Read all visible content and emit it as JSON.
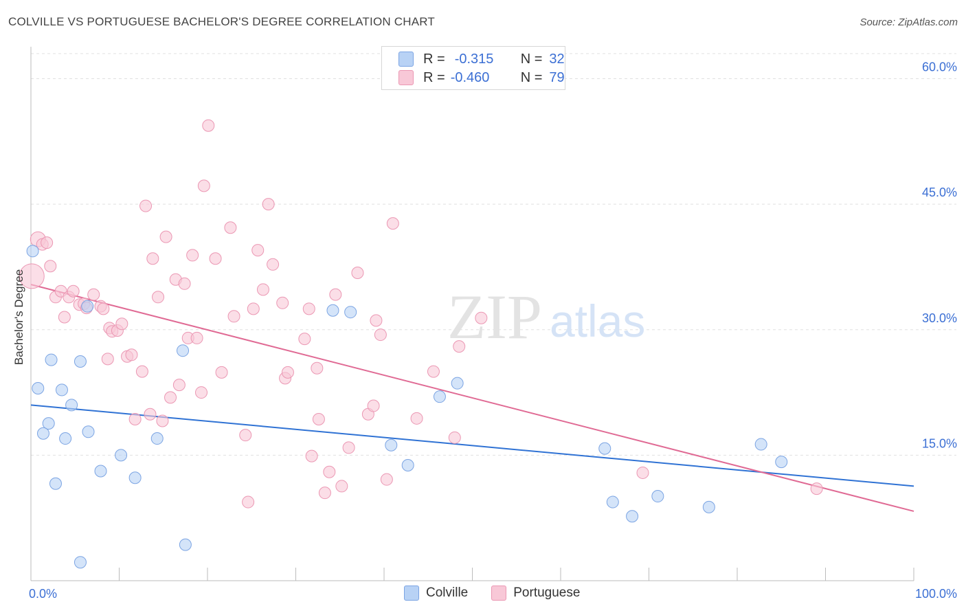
{
  "header": {
    "title": "COLVILLE VS PORTUGUESE BACHELOR'S DEGREE CORRELATION CHART",
    "source": "Source: ZipAtlas.com"
  },
  "legend": {
    "r_label": "R =",
    "n_label": "N =",
    "colville": {
      "r": "-0.315",
      "n": "32"
    },
    "portuguese": {
      "r": "-0.460",
      "n": "79"
    }
  },
  "colors": {
    "colville_fill": "#b8d2f5",
    "colville_stroke": "#7ba4e3",
    "colville_line": "#2f72d4",
    "portuguese_fill": "#f8c8d7",
    "portuguese_stroke": "#eb97b3",
    "portuguese_line": "#e06a94",
    "axis_text": "#3b6fd4"
  },
  "chart_data": {
    "type": "scatter",
    "title": "COLVILLE VS PORTUGUESE BACHELOR'S DEGREE CORRELATION CHART",
    "xlabel": "",
    "ylabel": "Bachelor's Degree",
    "xlim": [
      0,
      100
    ],
    "ylim": [
      0,
      63
    ],
    "x_tick_labels": [
      "0.0%",
      "100.0%"
    ],
    "y_ticks": [
      15,
      30,
      45,
      60
    ],
    "y_tick_labels": [
      "15.0%",
      "30.0%",
      "45.0%",
      "60.0%"
    ],
    "grid": true,
    "legend_position": "top-center",
    "watermark": "ZIPatlas",
    "series": [
      {
        "name": "Colville",
        "r": -0.315,
        "n": 32,
        "trend": [
          [
            0,
            21.0
          ],
          [
            100,
            11.3
          ]
        ],
        "points": [
          [
            0.2,
            39.4
          ],
          [
            0.8,
            23.0
          ],
          [
            2.0,
            18.8
          ],
          [
            1.4,
            17.6
          ],
          [
            2.3,
            26.4
          ],
          [
            3.5,
            22.8
          ],
          [
            2.8,
            11.6
          ],
          [
            3.9,
            17.0
          ],
          [
            4.6,
            21.0
          ],
          [
            5.6,
            26.2
          ],
          [
            6.5,
            17.8
          ],
          [
            6.4,
            32.8
          ],
          [
            7.9,
            13.1
          ],
          [
            10.2,
            15.0
          ],
          [
            11.8,
            12.3
          ],
          [
            14.3,
            17.0
          ],
          [
            17.2,
            27.5
          ],
          [
            17.5,
            4.3
          ],
          [
            5.6,
            2.2
          ],
          [
            34.2,
            32.3
          ],
          [
            36.2,
            32.1
          ],
          [
            40.8,
            16.2
          ],
          [
            42.7,
            13.8
          ],
          [
            46.3,
            22.0
          ],
          [
            48.3,
            23.6
          ],
          [
            65.0,
            15.8
          ],
          [
            65.9,
            9.4
          ],
          [
            68.1,
            7.7
          ],
          [
            71.0,
            10.1
          ],
          [
            76.8,
            8.8
          ],
          [
            82.7,
            16.3
          ],
          [
            85.0,
            14.2
          ]
        ]
      },
      {
        "name": "Portuguese",
        "r": -0.46,
        "n": 79,
        "trend": [
          [
            0,
            35.4
          ],
          [
            100,
            8.3
          ]
        ],
        "points": [
          [
            0.1,
            36.4
          ],
          [
            0.8,
            40.8
          ],
          [
            1.3,
            40.2
          ],
          [
            1.8,
            40.4
          ],
          [
            2.2,
            37.6
          ],
          [
            2.8,
            33.9
          ],
          [
            3.4,
            34.6
          ],
          [
            3.8,
            31.5
          ],
          [
            4.3,
            33.9
          ],
          [
            4.8,
            34.6
          ],
          [
            5.5,
            33.0
          ],
          [
            6.0,
            33.1
          ],
          [
            6.3,
            32.6
          ],
          [
            7.1,
            34.2
          ],
          [
            7.9,
            32.8
          ],
          [
            8.2,
            32.5
          ],
          [
            8.7,
            26.5
          ],
          [
            8.9,
            30.2
          ],
          [
            9.2,
            29.8
          ],
          [
            9.8,
            29.9
          ],
          [
            10.3,
            30.7
          ],
          [
            10.9,
            26.8
          ],
          [
            11.4,
            27.0
          ],
          [
            11.8,
            19.3
          ],
          [
            12.6,
            25.0
          ],
          [
            13.0,
            44.8
          ],
          [
            13.5,
            19.9
          ],
          [
            13.8,
            38.5
          ],
          [
            14.4,
            33.9
          ],
          [
            14.9,
            19.1
          ],
          [
            15.3,
            41.1
          ],
          [
            15.8,
            21.9
          ],
          [
            16.4,
            36.0
          ],
          [
            16.8,
            23.4
          ],
          [
            17.4,
            35.5
          ],
          [
            17.8,
            29.0
          ],
          [
            18.3,
            38.9
          ],
          [
            18.8,
            29.0
          ],
          [
            19.3,
            22.5
          ],
          [
            19.6,
            47.2
          ],
          [
            20.1,
            54.4
          ],
          [
            20.9,
            38.5
          ],
          [
            21.6,
            24.9
          ],
          [
            22.6,
            42.2
          ],
          [
            23.0,
            31.6
          ],
          [
            24.3,
            17.4
          ],
          [
            24.6,
            9.4
          ],
          [
            25.2,
            32.5
          ],
          [
            25.7,
            39.5
          ],
          [
            26.3,
            34.8
          ],
          [
            26.9,
            45.0
          ],
          [
            27.4,
            37.8
          ],
          [
            28.5,
            33.2
          ],
          [
            28.8,
            24.2
          ],
          [
            29.1,
            24.9
          ],
          [
            31.0,
            28.9
          ],
          [
            31.5,
            32.5
          ],
          [
            31.8,
            14.9
          ],
          [
            32.4,
            25.4
          ],
          [
            32.6,
            19.3
          ],
          [
            33.3,
            10.5
          ],
          [
            33.8,
            13.0
          ],
          [
            34.5,
            34.2
          ],
          [
            35.2,
            11.3
          ],
          [
            36.0,
            15.9
          ],
          [
            37.0,
            36.8
          ],
          [
            38.2,
            19.9
          ],
          [
            38.8,
            20.9
          ],
          [
            39.1,
            31.1
          ],
          [
            39.6,
            29.4
          ],
          [
            40.3,
            12.1
          ],
          [
            41.0,
            42.7
          ],
          [
            43.7,
            19.4
          ],
          [
            45.6,
            25.0
          ],
          [
            48.0,
            17.1
          ],
          [
            48.5,
            28.0
          ],
          [
            51.0,
            31.4
          ],
          [
            69.3,
            12.9
          ],
          [
            89.0,
            11.0
          ]
        ]
      }
    ]
  }
}
